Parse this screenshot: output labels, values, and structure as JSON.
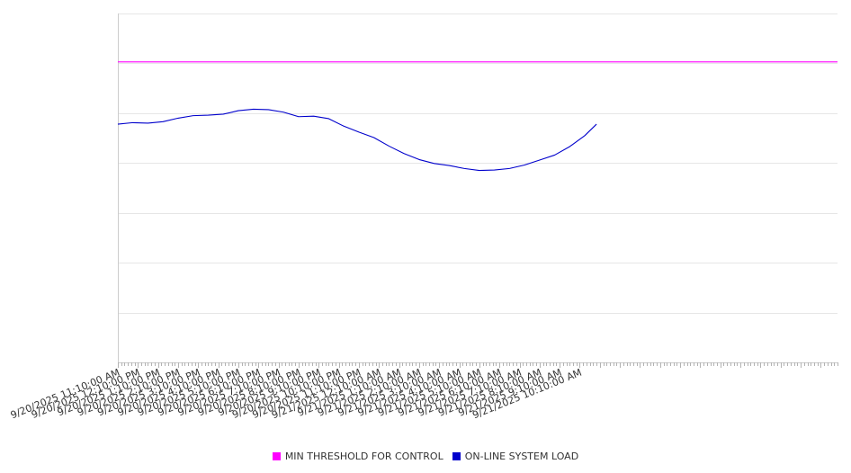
{
  "chart_data": {
    "type": "line",
    "title": "",
    "xlabel": "",
    "ylabel": "",
    "ylim": [
      0,
      7
    ],
    "yticks": [
      0,
      1,
      2,
      3,
      4,
      5,
      6,
      7
    ],
    "y_tick_labels_visible": false,
    "grid": "horizontal",
    "legend": "bottom-center",
    "x_start": "9/20/2025 11:10:00 AM",
    "x_end": "9/21/2025 11:00:00 PM",
    "x_tick_labels": [
      "9/20/2025 11:10:00 AM",
      "9/20/2025 12:10:00 PM",
      "9/20/2025 1:10:00 PM",
      "9/20/2025 2:10:00 PM",
      "9/20/2025 3:10:00 PM",
      "9/20/2025 4:10:00 PM",
      "9/20/2025 5:10:00 PM",
      "9/20/2025 6:10:00 PM",
      "9/20/2025 7:10:00 PM",
      "9/20/2025 8:10:00 PM",
      "9/20/2025 9:10:00 PM",
      "9/20/2025 10:10:00 PM",
      "9/20/2025 11:10:00 PM",
      "9/21/2025 12:10:00 AM",
      "9/21/2025 1:10:00 AM",
      "9/21/2025 2:10:00 AM",
      "9/21/2025 3:10:00 AM",
      "9/21/2025 4:10:00 AM",
      "9/21/2025 5:10:00 AM",
      "9/21/2025 6:10:00 AM",
      "9/21/2025 7:10:00 AM",
      "9/21/2025 8:10:00 AM",
      "9/21/2025 9:10:00 AM",
      "9/21/2025 10:10:00 AM"
    ],
    "series": [
      {
        "name": "MIN THRESHOLD FOR CONTROL",
        "color": "#ff00ff",
        "x": [
          "9/20/2025 11:10:00 AM",
          "9/21/2025 11:00:00 PM"
        ],
        "values": [
          6.03,
          6.03
        ]
      },
      {
        "name": "ON-LINE SYSTEM LOAD",
        "color": "#0000cc",
        "x": [
          "9/20/2025 11:10:00 AM",
          "9/20/2025 11:55:00 AM",
          "9/20/2025 12:40:00 PM",
          "9/20/2025 1:25:00 PM",
          "9/20/2025 2:10:00 PM",
          "9/20/2025 2:55:00 PM",
          "9/20/2025 3:40:00 PM",
          "9/20/2025 4:25:00 PM",
          "9/20/2025 5:10:00 PM",
          "9/20/2025 5:55:00 PM",
          "9/20/2025 6:40:00 PM",
          "9/20/2025 7:25:00 PM",
          "9/20/2025 8:10:00 PM",
          "9/20/2025 8:55:00 PM",
          "9/20/2025 9:40:00 PM",
          "9/20/2025 10:25:00 PM",
          "9/20/2025 11:10:00 PM",
          "9/20/2025 11:55:00 PM",
          "9/21/2025 12:40:00 AM",
          "9/21/2025 1:25:00 AM",
          "9/21/2025 2:10:00 AM",
          "9/21/2025 2:55:00 AM",
          "9/21/2025 3:40:00 AM",
          "9/21/2025 4:25:00 AM",
          "9/21/2025 5:10:00 AM",
          "9/21/2025 5:55:00 AM",
          "9/21/2025 6:40:00 AM",
          "9/21/2025 7:25:00 AM",
          "9/21/2025 8:10:00 AM",
          "9/21/2025 8:55:00 AM",
          "9/21/2025 9:40:00 AM",
          "9/21/2025 10:25:00 AM",
          "9/21/2025 11:00:00 AM"
        ],
        "values": [
          4.78,
          4.81,
          4.8,
          4.83,
          4.9,
          4.95,
          4.96,
          4.98,
          5.05,
          5.08,
          5.07,
          5.02,
          4.93,
          4.94,
          4.89,
          4.74,
          4.62,
          4.51,
          4.34,
          4.19,
          4.07,
          3.99,
          3.95,
          3.89,
          3.85,
          3.86,
          3.89,
          3.96,
          4.06,
          4.16,
          4.33,
          4.55,
          4.78
        ]
      }
    ]
  },
  "legend_items": [
    {
      "label": "MIN THRESHOLD FOR CONTROL",
      "color": "#ff00ff"
    },
    {
      "label": "ON-LINE SYSTEM LOAD",
      "color": "#0000cc"
    }
  ]
}
